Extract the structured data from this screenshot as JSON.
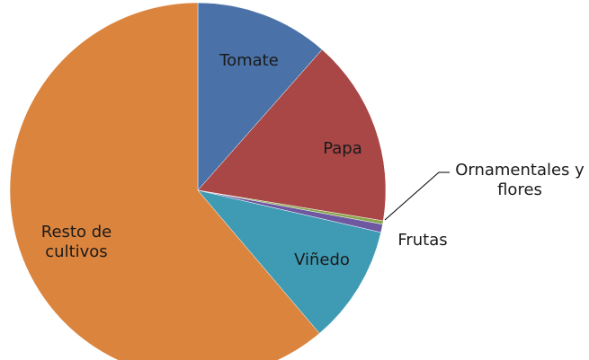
{
  "chart_data": {
    "type": "pie",
    "categories": [
      "Tomate",
      "Papa",
      "Ornamentales y flores",
      "Frutas",
      "Viñedo",
      "Resto de cultivos"
    ],
    "values": [
      11.5,
      16.1,
      0.3,
      0.7,
      10.2,
      61.2
    ],
    "colors": [
      "#4a72a8",
      "#a84746",
      "#8aa64a",
      "#6e58a0",
      "#3f9bb4",
      "#db843d"
    ]
  }
}
